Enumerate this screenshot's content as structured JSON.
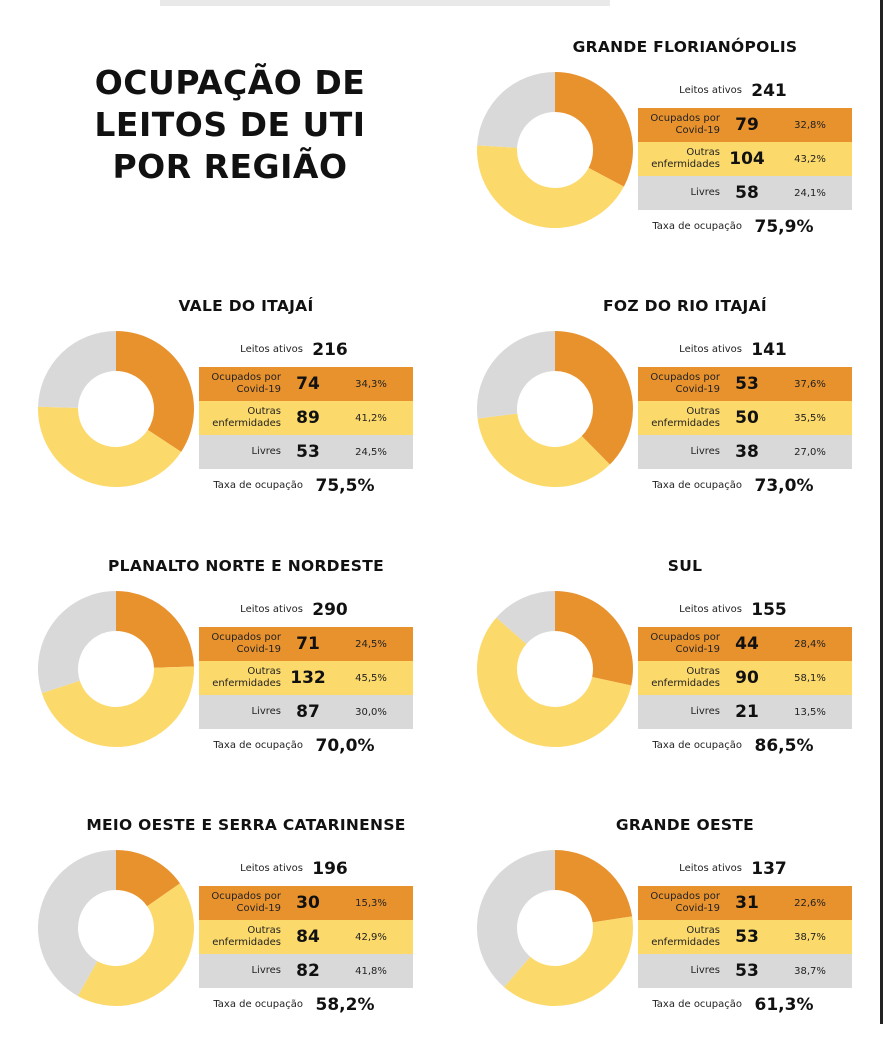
{
  "title_lines": [
    "OCUPAÇÃO DE",
    "LEITOS DE UTI",
    "POR REGIÃO"
  ],
  "colors": {
    "covid": "#e8922e",
    "outras": "#fcd96b",
    "livres": "#d9d9d9"
  },
  "labels": {
    "ativos": "Leitos ativos",
    "covid": "Ocupados por Covid-19",
    "outras": "Outras enfermidades",
    "livres": "Livres",
    "taxa": "Taxa de ocupação"
  },
  "chart_data": [
    {
      "type": "pie",
      "title": "GRANDE FLORIANÓPOLIS",
      "ativos": "241",
      "categories": [
        "Ocupados por Covid-19",
        "Outras enfermidades",
        "Livres"
      ],
      "values": [
        79,
        104,
        58
      ],
      "value_labels": [
        "79",
        "104",
        "58"
      ],
      "percents": [
        "32,8%",
        "43,2%",
        "24,1%"
      ],
      "taxa": "75,9%"
    },
    {
      "type": "pie",
      "title": "VALE DO ITAJAÍ",
      "ativos": "216",
      "categories": [
        "Ocupados por Covid-19",
        "Outras enfermidades",
        "Livres"
      ],
      "values": [
        74,
        89,
        53
      ],
      "value_labels": [
        "74",
        "89",
        "53"
      ],
      "percents": [
        "34,3%",
        "41,2%",
        "24,5%"
      ],
      "taxa": "75,5%"
    },
    {
      "type": "pie",
      "title": "FOZ DO RIO ITAJAÍ",
      "ativos": "141",
      "categories": [
        "Ocupados por Covid-19",
        "Outras enfermidades",
        "Livres"
      ],
      "values": [
        53,
        50,
        38
      ],
      "value_labels": [
        "53",
        "50",
        "38"
      ],
      "percents": [
        "37,6%",
        "35,5%",
        "27,0%"
      ],
      "taxa": "73,0%"
    },
    {
      "type": "pie",
      "title": "PLANALTO NORTE E NORDESTE",
      "ativos": "290",
      "categories": [
        "Ocupados por Covid-19",
        "Outras enfermidades",
        "Livres"
      ],
      "values": [
        71,
        132,
        87
      ],
      "value_labels": [
        "71",
        "132",
        "87"
      ],
      "percents": [
        "24,5%",
        "45,5%",
        "30,0%"
      ],
      "taxa": "70,0%"
    },
    {
      "type": "pie",
      "title": "SUL",
      "ativos": "155",
      "categories": [
        "Ocupados por Covid-19",
        "Outras enfermidades",
        "Livres"
      ],
      "values": [
        44,
        90,
        21
      ],
      "value_labels": [
        "44",
        "90",
        "21"
      ],
      "percents": [
        "28,4%",
        "58,1%",
        "13,5%"
      ],
      "taxa": "86,5%"
    },
    {
      "type": "pie",
      "title": "MEIO OESTE E SERRA CATARINENSE",
      "ativos": "196",
      "categories": [
        "Ocupados por Covid-19",
        "Outras enfermidades",
        "Livres"
      ],
      "values": [
        30,
        84,
        82
      ],
      "value_labels": [
        "30",
        "84",
        "82"
      ],
      "percents": [
        "15,3%",
        "42,9%",
        "41,8%"
      ],
      "taxa": "58,2%"
    },
    {
      "type": "pie",
      "title": "GRANDE OESTE",
      "ativos": "137",
      "categories": [
        "Ocupados por Covid-19",
        "Outras enfermidades",
        "Livres"
      ],
      "values": [
        31,
        53,
        53
      ],
      "value_labels": [
        "31",
        "53",
        "53"
      ],
      "percents": [
        "22,6%",
        "38,7%",
        "38,7%"
      ],
      "taxa": "61,3%"
    }
  ]
}
